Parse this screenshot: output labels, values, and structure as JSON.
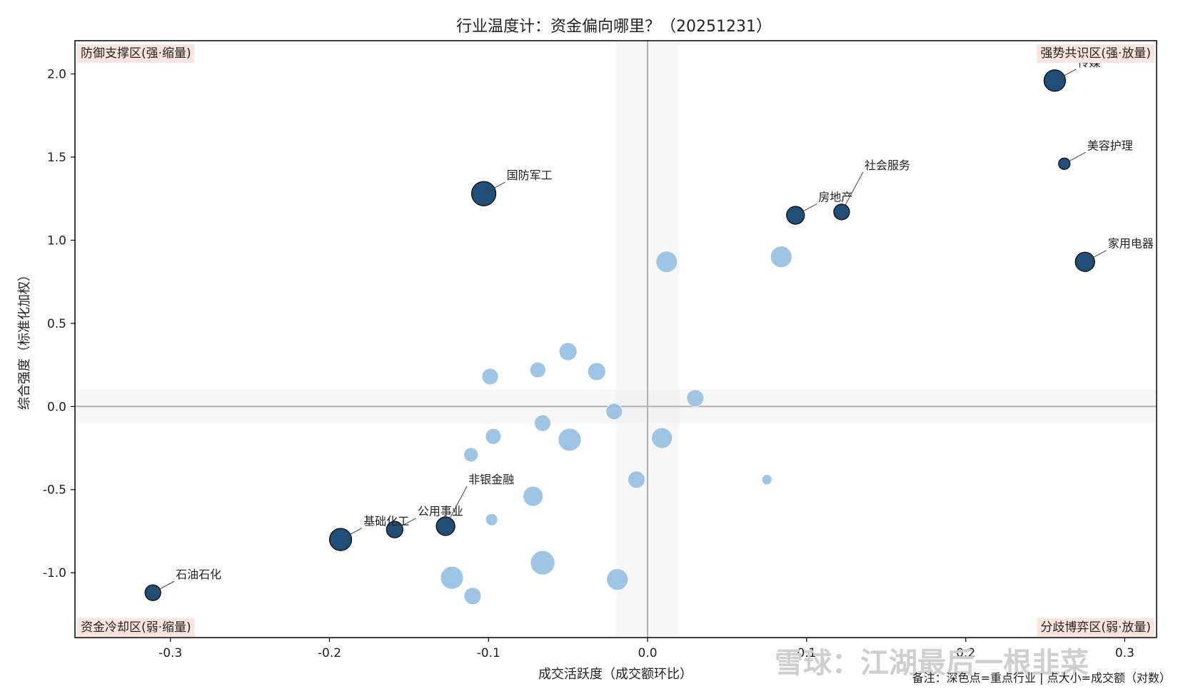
{
  "chart_data": {
    "type": "scatter",
    "title": "行业温度计：资金偏向哪里？（20251231）",
    "xlabel": "成交活跃度（成交额环比）",
    "ylabel": "综合强度（标准化加权）",
    "xlim": [
      -0.36,
      0.32
    ],
    "ylim": [
      -1.39,
      2.2
    ],
    "xticks": [
      -0.3,
      -0.2,
      -0.1,
      0.0,
      0.1,
      0.2,
      0.3
    ],
    "xtick_labels": [
      "-0.3",
      "-0.2",
      "-0.1",
      "0.0",
      "0.1",
      "0.2",
      "0.3"
    ],
    "yticks": [
      -1.0,
      -0.5,
      0.0,
      0.5,
      1.0,
      1.5,
      2.0
    ],
    "ytick_labels": [
      "-1.0",
      "-0.5",
      "0.0",
      "0.5",
      "1.0",
      "1.5",
      "2.0"
    ],
    "x_neutral_band": [
      -0.02,
      0.02
    ],
    "y_neutral_band": [
      -0.1,
      0.1
    ],
    "quadrants": {
      "top_left": "防御支撑区(强·缩量)",
      "top_right": "强势共识区(强·放量)",
      "bottom_left": "资金冷却区(弱·缩量)",
      "bottom_right": "分歧博弈区(弱·放量)"
    },
    "colors": {
      "key": "#1f4e79",
      "other": "#94bfe0",
      "zone_bg": "#fbe5dc",
      "band": "#ececec",
      "zero_line": "#b0b0b0"
    },
    "key_points": [
      {
        "label": "传媒",
        "x": 0.256,
        "y": 1.96,
        "size": 15
      },
      {
        "label": "美容护理",
        "x": 0.262,
        "y": 1.46,
        "size": 8
      },
      {
        "label": "社会服务",
        "x": 0.122,
        "y": 1.17,
        "size": 11
      },
      {
        "label": "房地产",
        "x": 0.093,
        "y": 1.15,
        "size": 12.5
      },
      {
        "label": "家用电器",
        "x": 0.275,
        "y": 0.87,
        "size": 13.5
      },
      {
        "label": "国防军工",
        "x": -0.103,
        "y": 1.28,
        "size": 17
      },
      {
        "label": "非银金融",
        "x": -0.127,
        "y": -0.72,
        "size": 13
      },
      {
        "label": "公用事业",
        "x": -0.159,
        "y": -0.74,
        "size": 11.5
      },
      {
        "label": "基础化工",
        "x": -0.193,
        "y": -0.8,
        "size": 15.5
      },
      {
        "label": "石油石化",
        "x": -0.311,
        "y": -1.12,
        "size": 11
      }
    ],
    "other_points": [
      {
        "x": 0.012,
        "y": 0.87,
        "size": 15
      },
      {
        "x": 0.084,
        "y": 0.9,
        "size": 15
      },
      {
        "x": -0.05,
        "y": 0.33,
        "size": 12.5
      },
      {
        "x": -0.099,
        "y": 0.18,
        "size": 11.5
      },
      {
        "x": -0.069,
        "y": 0.22,
        "size": 11
      },
      {
        "x": -0.032,
        "y": 0.21,
        "size": 12.5
      },
      {
        "x": 0.03,
        "y": 0.05,
        "size": 12
      },
      {
        "x": -0.021,
        "y": -0.03,
        "size": 11.5
      },
      {
        "x": -0.066,
        "y": -0.1,
        "size": 11.5
      },
      {
        "x": -0.097,
        "y": -0.18,
        "size": 11
      },
      {
        "x": -0.049,
        "y": -0.2,
        "size": 16
      },
      {
        "x": 0.009,
        "y": -0.19,
        "size": 14.5
      },
      {
        "x": -0.111,
        "y": -0.29,
        "size": 10
      },
      {
        "x": -0.007,
        "y": -0.44,
        "size": 12
      },
      {
        "x": 0.075,
        "y": -0.44,
        "size": 7
      },
      {
        "x": -0.072,
        "y": -0.54,
        "size": 14
      },
      {
        "x": -0.098,
        "y": -0.68,
        "size": 8.5
      },
      {
        "x": -0.066,
        "y": -0.94,
        "size": 17
      },
      {
        "x": -0.123,
        "y": -1.03,
        "size": 16
      },
      {
        "x": -0.019,
        "y": -1.04,
        "size": 15
      },
      {
        "x": -0.11,
        "y": -1.14,
        "size": 12
      }
    ],
    "note": "备注：深色点=重点行业 | 点大小=成交额（对数）",
    "watermark": "雪球：江湖最后一根韭菜"
  }
}
